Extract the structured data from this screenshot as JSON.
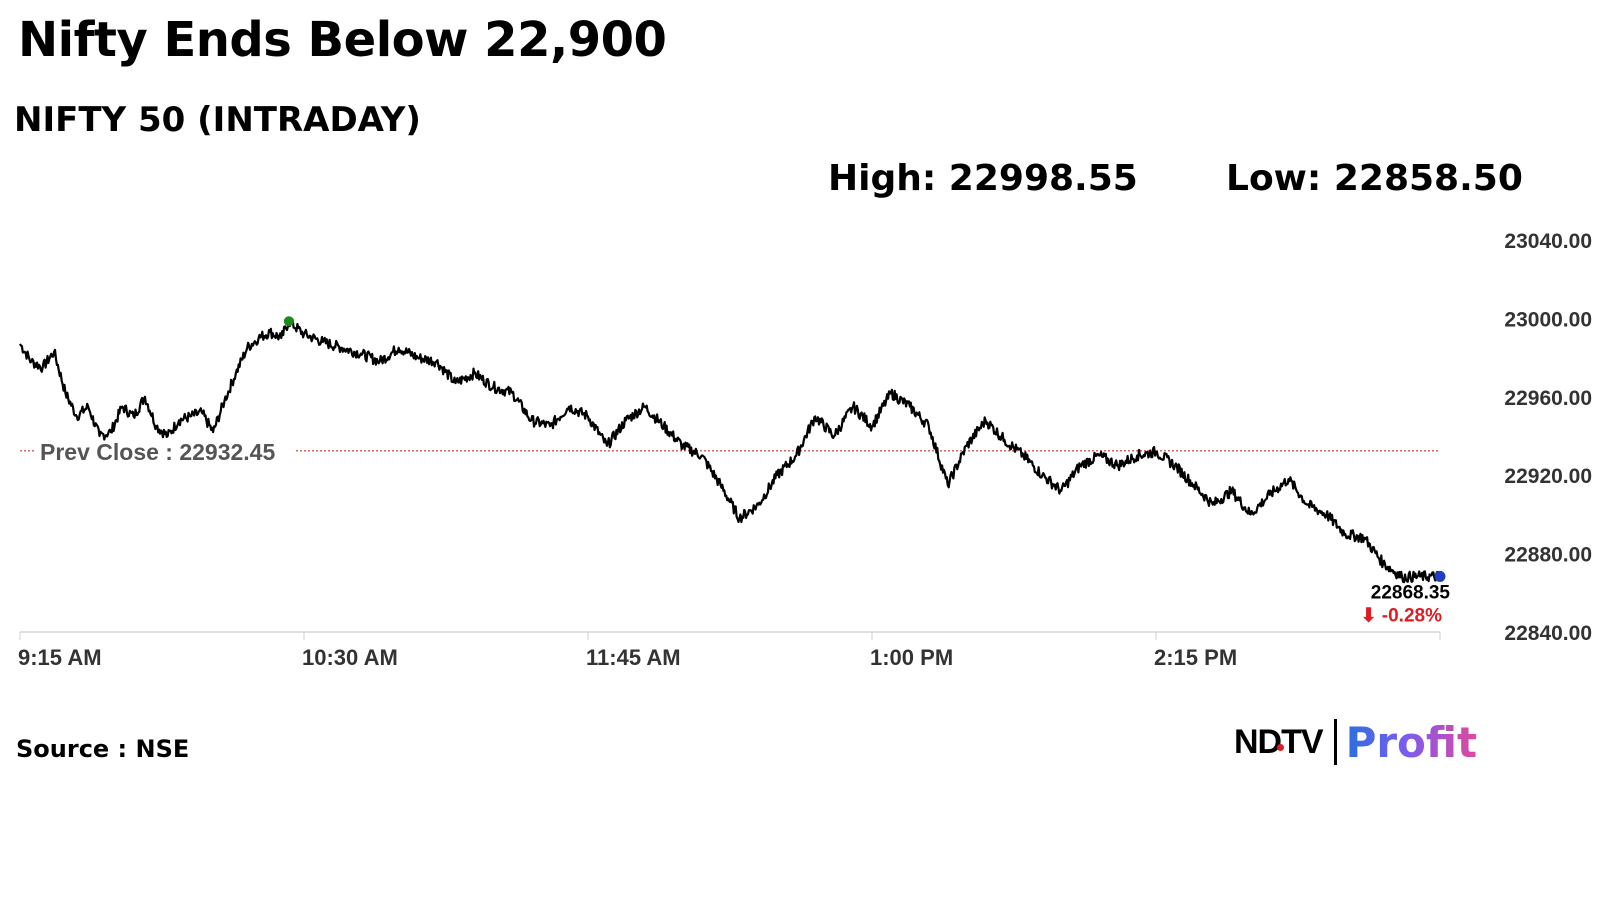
{
  "headline": "Nifty Ends Below 22,900",
  "subtitle": "NIFTY 50 (INTRADAY)",
  "stats": {
    "high": "High: 22998.55",
    "low": "Low: 22858.50"
  },
  "source": "Source : NSE",
  "logo": {
    "left": "NDTV",
    "right": "Profit"
  },
  "colors": {
    "line": "#000000",
    "prev_close": "#c0392b",
    "high_marker": "#1a8a1a",
    "last_marker": "#1f3fbf",
    "change": "#e01b22"
  },
  "chart_data": {
    "type": "line",
    "title": "NIFTY 50 (INTRADAY)",
    "x_ticks": [
      "9:15 AM",
      "10:30 AM",
      "11:45 AM",
      "1:00 PM",
      "2:15 PM"
    ],
    "y_ticks": [
      "23040.00",
      "23000.00",
      "22960.00",
      "22920.00",
      "22880.00",
      "22840.00"
    ],
    "ylim": [
      22840,
      23040
    ],
    "x_range_minutes": [
      0,
      375
    ],
    "prev_close": {
      "label": "Prev Close : 22932.45",
      "value": 22932.45
    },
    "high": {
      "minutes": 71,
      "value": 22998.55
    },
    "last": {
      "label": "22868.35",
      "value": 22868.35,
      "change": "⬇ -0.28%"
    },
    "series": [
      {
        "time_minutes": [
          0,
          3,
          6,
          9,
          12,
          15,
          18,
          21,
          24,
          27,
          30,
          33,
          36,
          39,
          42,
          45,
          48,
          51,
          54,
          57,
          60,
          63,
          66,
          69,
          71,
          75,
          80,
          85,
          90,
          95,
          100,
          105,
          110,
          115,
          120,
          125,
          130,
          135,
          140,
          145,
          150,
          155,
          160,
          165,
          170,
          175,
          180,
          185,
          190,
          195,
          200,
          205,
          210,
          215,
          220,
          225,
          230,
          235,
          240,
          245,
          250,
          255,
          260,
          265,
          270,
          275,
          280,
          285,
          290,
          295,
          300,
          305,
          310,
          315,
          320,
          325,
          330,
          335,
          340,
          345,
          350,
          355,
          360,
          365,
          370,
          375
        ],
        "values": [
          22987,
          22978,
          22975,
          22983,
          22962,
          22950,
          22955,
          22940,
          22942,
          22955,
          22950,
          22960,
          22945,
          22940,
          22948,
          22950,
          22952,
          22942,
          22958,
          22972,
          22985,
          22990,
          22993,
          22990,
          22998.5,
          22992,
          22988,
          22985,
          22982,
          22978,
          22985,
          22980,
          22978,
          22967,
          22972,
          22965,
          22962,
          22948,
          22945,
          22955,
          22950,
          22935,
          22948,
          22955,
          22945,
          22935,
          22930,
          22915,
          22898,
          22905,
          22920,
          22930,
          22950,
          22940,
          22955,
          22945,
          22962,
          22955,
          22945,
          22915,
          22935,
          22948,
          22938,
          22930,
          22920,
          22912,
          22925,
          22930,
          22925,
          22930,
          22932,
          22925,
          22915,
          22905,
          22912,
          22900,
          22910,
          22918,
          22905,
          22900,
          22890,
          22888,
          22875,
          22868,
          22868.35,
          22868.35
        ]
      }
    ]
  }
}
